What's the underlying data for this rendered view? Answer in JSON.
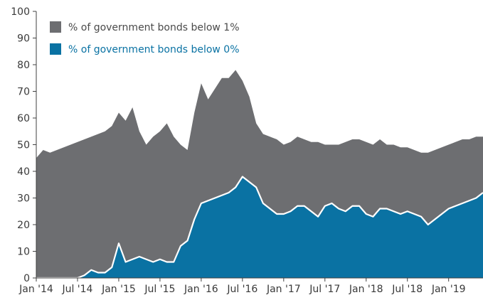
{
  "chart_data": {
    "type": "area",
    "title": "",
    "xlabel": "",
    "ylabel": "",
    "ylim": [
      0,
      100
    ],
    "y_ticks": [
      "0",
      "10",
      "20",
      "30",
      "40",
      "50",
      "60",
      "70",
      "80",
      "90",
      "100"
    ],
    "x_ticks": [
      "Jan '14",
      "Jul '14",
      "Jan '15",
      "Jul '15",
      "Jan '16",
      "Jul '16",
      "Jan '17",
      "Jul '17",
      "Jan '18",
      "Jul '18",
      "Jan '19"
    ],
    "grid": false,
    "legend_position": "top-left",
    "colors": {
      "below_1pct": "#6d6e71",
      "below_0pct": "#0a72a3",
      "separator": "#ffffff",
      "axis": "#404040"
    },
    "x": [
      "2014-01",
      "2014-02",
      "2014-03",
      "2014-04",
      "2014-05",
      "2014-06",
      "2014-07",
      "2014-08",
      "2014-09",
      "2014-10",
      "2014-11",
      "2014-12",
      "2015-01",
      "2015-02",
      "2015-03",
      "2015-04",
      "2015-05",
      "2015-06",
      "2015-07",
      "2015-08",
      "2015-09",
      "2015-10",
      "2015-11",
      "2015-12",
      "2016-01",
      "2016-02",
      "2016-03",
      "2016-04",
      "2016-05",
      "2016-06",
      "2016-07",
      "2016-08",
      "2016-09",
      "2016-10",
      "2016-11",
      "2016-12",
      "2017-01",
      "2017-02",
      "2017-03",
      "2017-04",
      "2017-05",
      "2017-06",
      "2017-07",
      "2017-08",
      "2017-09",
      "2017-10",
      "2017-11",
      "2017-12",
      "2018-01",
      "2018-02",
      "2018-03",
      "2018-04",
      "2018-05",
      "2018-06",
      "2018-07",
      "2018-08",
      "2018-09",
      "2018-10",
      "2018-11",
      "2018-12",
      "2019-01",
      "2019-02",
      "2019-03",
      "2019-04",
      "2019-05",
      "2019-06"
    ],
    "series": [
      {
        "name": "% of government bonds below 1%",
        "values": [
          45,
          48,
          47,
          48,
          49,
          50,
          51,
          52,
          53,
          54,
          55,
          57,
          62,
          59,
          64,
          55,
          50,
          53,
          55,
          58,
          53,
          50,
          48,
          62,
          73,
          67,
          71,
          75,
          75,
          78,
          74,
          68,
          58,
          54,
          53,
          52,
          50,
          51,
          53,
          52,
          51,
          51,
          50,
          50,
          50,
          51,
          52,
          52,
          51,
          50,
          52,
          50,
          50,
          49,
          49,
          48,
          47,
          47,
          48,
          49,
          50,
          51,
          52,
          52,
          53,
          53
        ]
      },
      {
        "name": "% of government bonds below 0%",
        "values": [
          0,
          0,
          0,
          0,
          0,
          0,
          0,
          1,
          3,
          2,
          2,
          4,
          13,
          6,
          7,
          8,
          7,
          6,
          7,
          6,
          6,
          12,
          14,
          22,
          28,
          29,
          30,
          31,
          32,
          34,
          38,
          36,
          34,
          28,
          26,
          24,
          24,
          25,
          27,
          27,
          25,
          23,
          27,
          28,
          26,
          25,
          27,
          27,
          24,
          23,
          26,
          26,
          25,
          24,
          25,
          24,
          23,
          20,
          22,
          24,
          26,
          27,
          28,
          29,
          30,
          32
        ]
      }
    ]
  }
}
